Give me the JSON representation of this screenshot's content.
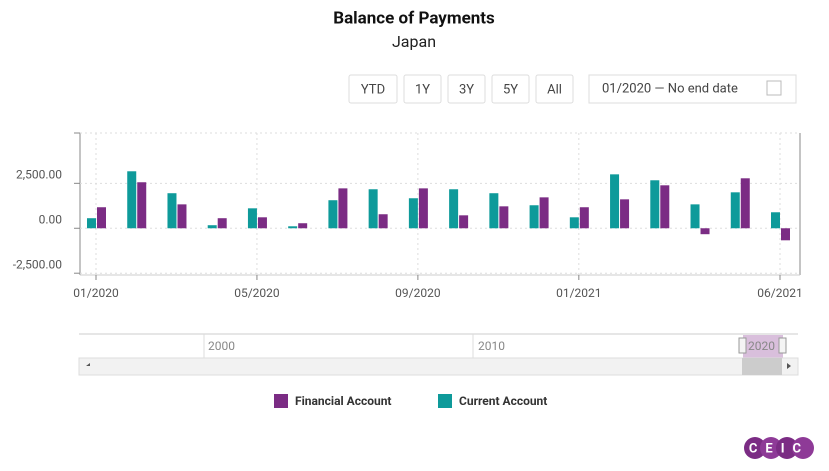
{
  "chart_data": {
    "type": "bar",
    "title": "Balance of Payments",
    "subtitle": "Japan",
    "categories": [
      "01/2020",
      null,
      null,
      null,
      "05/2020",
      null,
      null,
      null,
      "09/2020",
      null,
      null,
      null,
      "01/2021",
      null,
      null,
      null,
      null,
      "06/2021"
    ],
    "series": [
      {
        "name": "Financial Account",
        "color": "#7b2c84",
        "values": [
          1170,
          2560,
          1330,
          560,
          610,
          280,
          2220,
          780,
          2220,
          720,
          1220,
          1720,
          1170,
          1610,
          2390,
          -330,
          2780,
          -670
        ]
      },
      {
        "name": "Current Account",
        "color": "#0e9a9a",
        "values": [
          560,
          3170,
          1950,
          170,
          1110,
          110,
          1560,
          2170,
          1670,
          2170,
          1950,
          1280,
          610,
          3000,
          2670,
          1330,
          2000,
          890
        ]
      }
    ],
    "ylim": [
      -2600,
      5300
    ],
    "yticks": [
      {
        "value": -2500,
        "label": "-2,500.00"
      },
      {
        "value": 0,
        "label": "0.00"
      },
      {
        "value": 2500,
        "label": "2,500.00"
      }
    ],
    "grid": true
  },
  "range_buttons": [
    "YTD",
    "1Y",
    "3Y",
    "5Y",
    "All"
  ],
  "date_range": "01/2020  —  No end date",
  "navigator_labels": [
    "2000",
    "2010",
    "2020"
  ],
  "logo": "CEIC"
}
